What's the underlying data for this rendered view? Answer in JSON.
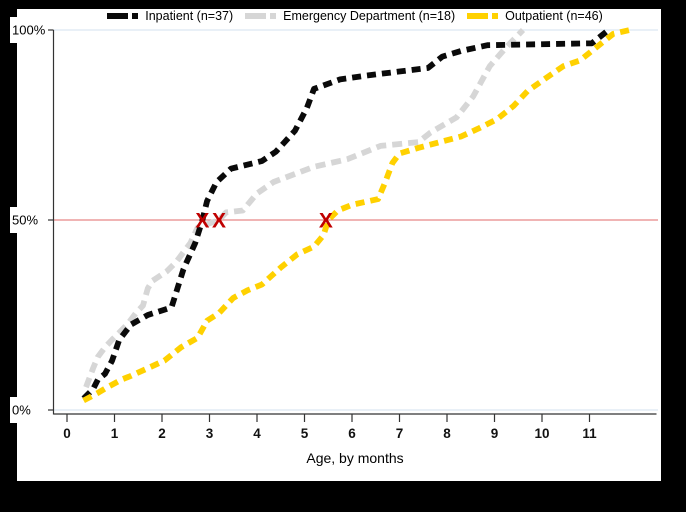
{
  "figure": {
    "background": "#000000",
    "canvas_color": "#ffffff"
  },
  "legend": {
    "items": [
      {
        "label": "Inpatient (n=37)",
        "color": "#0a0a0a"
      },
      {
        "label": "Emergency Department (n=18)",
        "color": "#d6d6d6"
      },
      {
        "label": "Outpatient (n=46)",
        "color": "#ffd100"
      }
    ]
  },
  "chart_data": {
    "type": "line",
    "subtype": "cumulative-percent-step-curves",
    "title": "",
    "xlabel": "Age, by months",
    "ylabel": "",
    "xlim": [
      0,
      12.4
    ],
    "ylim": [
      0,
      100
    ],
    "x_ticks": [
      0,
      1,
      2,
      3,
      4,
      5,
      6,
      7,
      8,
      9,
      10,
      11
    ],
    "y_ticks": [
      {
        "value": 0,
        "label": "0%"
      },
      {
        "value": 50,
        "label": "50%"
      },
      {
        "value": 100,
        "label": "100%"
      }
    ],
    "grid": {
      "horizontal_at": [
        0,
        100
      ],
      "color": "#dce8f2"
    },
    "reference_line": {
      "y": 50,
      "color": "#e26868"
    },
    "median_markers": {
      "symbol": "X",
      "color": "#c00000",
      "y": 50,
      "points": [
        {
          "series": "Inpatient (n=37)",
          "x": 2.85
        },
        {
          "series": "Emergency Department (n=18)",
          "x": 3.2
        },
        {
          "series": "Outpatient (n=46)",
          "x": 5.45
        }
      ]
    },
    "series": [
      {
        "name": "Emergency Department (n=18)",
        "n": 18,
        "color": "#d6d6d6",
        "points": [
          [
            0.4,
            6
          ],
          [
            0.55,
            11
          ],
          [
            0.65,
            14
          ],
          [
            0.8,
            16.5
          ],
          [
            0.95,
            18.5
          ],
          [
            1.15,
            21
          ],
          [
            1.3,
            23
          ],
          [
            1.45,
            25.5
          ],
          [
            1.6,
            27.5
          ],
          [
            1.7,
            32
          ],
          [
            1.8,
            34
          ],
          [
            2.1,
            36.5
          ],
          [
            2.3,
            39
          ],
          [
            2.45,
            41.5
          ],
          [
            2.6,
            44
          ],
          [
            2.75,
            48
          ],
          [
            3.2,
            50
          ],
          [
            3.35,
            52
          ],
          [
            3.7,
            52.5
          ],
          [
            4.0,
            57
          ],
          [
            4.35,
            60
          ],
          [
            5.2,
            64
          ],
          [
            5.9,
            66
          ],
          [
            6.6,
            69.5
          ],
          [
            7.4,
            70.5
          ],
          [
            7.65,
            73
          ],
          [
            8.2,
            77
          ],
          [
            8.55,
            82.5
          ],
          [
            8.9,
            90.5
          ],
          [
            9.25,
            95.5
          ],
          [
            9.6,
            100
          ]
        ]
      },
      {
        "name": "Inpatient (n=37)",
        "n": 37,
        "color": "#0a0a0a",
        "points": [
          [
            0.35,
            3
          ],
          [
            0.55,
            5.5
          ],
          [
            0.65,
            8
          ],
          [
            0.8,
            9.5
          ],
          [
            0.95,
            13
          ],
          [
            1.1,
            18.5
          ],
          [
            1.35,
            22.5
          ],
          [
            1.7,
            25
          ],
          [
            2.2,
            27
          ],
          [
            2.45,
            37
          ],
          [
            2.7,
            44
          ],
          [
            2.85,
            50
          ],
          [
            2.95,
            55
          ],
          [
            3.15,
            60
          ],
          [
            3.45,
            63.5
          ],
          [
            4.1,
            65.5
          ],
          [
            4.4,
            68
          ],
          [
            4.8,
            73.5
          ],
          [
            5.05,
            79.5
          ],
          [
            5.2,
            84.5
          ],
          [
            5.75,
            87
          ],
          [
            6.3,
            88
          ],
          [
            6.95,
            89
          ],
          [
            7.6,
            90
          ],
          [
            7.9,
            93
          ],
          [
            8.3,
            94.5
          ],
          [
            8.85,
            96
          ],
          [
            11.05,
            96.5
          ],
          [
            11.2,
            98
          ],
          [
            11.4,
            100
          ]
        ]
      },
      {
        "name": "Outpatient (n=46)",
        "n": 46,
        "color": "#ffd100",
        "points": [
          [
            0.35,
            2.5
          ],
          [
            0.65,
            4.5
          ],
          [
            0.85,
            6
          ],
          [
            1.15,
            8
          ],
          [
            1.35,
            9
          ],
          [
            1.7,
            11
          ],
          [
            2.05,
            13
          ],
          [
            2.4,
            16.5
          ],
          [
            2.75,
            19
          ],
          [
            2.95,
            23.5
          ],
          [
            3.2,
            25.5
          ],
          [
            3.35,
            27.5
          ],
          [
            3.5,
            29.5
          ],
          [
            3.8,
            31.5
          ],
          [
            4.1,
            33
          ],
          [
            4.5,
            37.5
          ],
          [
            4.85,
            41
          ],
          [
            5.2,
            43
          ],
          [
            5.4,
            46
          ],
          [
            5.5,
            50
          ],
          [
            5.7,
            52.5
          ],
          [
            6.0,
            54
          ],
          [
            6.55,
            55.5
          ],
          [
            6.7,
            60
          ],
          [
            6.85,
            65
          ],
          [
            7.0,
            67.5
          ],
          [
            7.4,
            69
          ],
          [
            8.3,
            72
          ],
          [
            8.65,
            74
          ],
          [
            9.05,
            76.5
          ],
          [
            9.4,
            80
          ],
          [
            9.7,
            84
          ],
          [
            10.1,
            87.5
          ],
          [
            10.45,
            90.5
          ],
          [
            10.8,
            92
          ],
          [
            11.15,
            95.5
          ],
          [
            11.5,
            99
          ],
          [
            11.85,
            100
          ]
        ]
      }
    ]
  }
}
